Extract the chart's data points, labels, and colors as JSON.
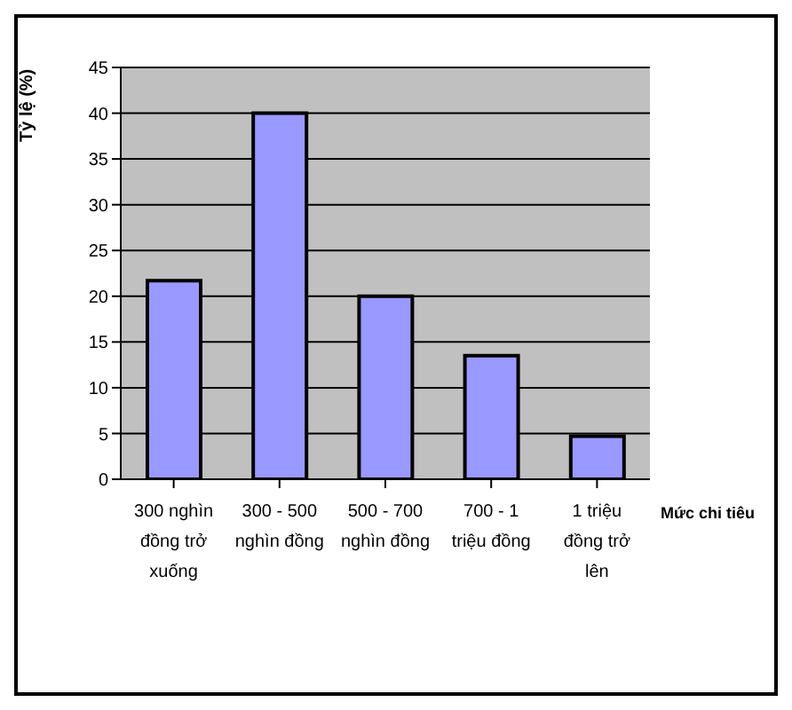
{
  "chart_data": {
    "type": "bar",
    "ylabel": "Tỷ lệ (%)",
    "xlabel": "Mức chi tiêu",
    "categories": [
      "300 nghìn đồng trở xuống",
      "300 - 500 nghìn đồng",
      "500 - 700 nghìn đồng",
      "700 - 1 triệu đồng",
      "1 triệu đồng trở lên"
    ],
    "values": [
      21.7,
      40,
      20,
      13.5,
      4.7
    ],
    "color": "#9999ff",
    "ylim": [
      0,
      45
    ],
    "yticks": [
      0,
      5,
      10,
      15,
      20,
      25,
      30,
      35,
      40,
      45
    ],
    "grid": "y",
    "legend": false
  }
}
